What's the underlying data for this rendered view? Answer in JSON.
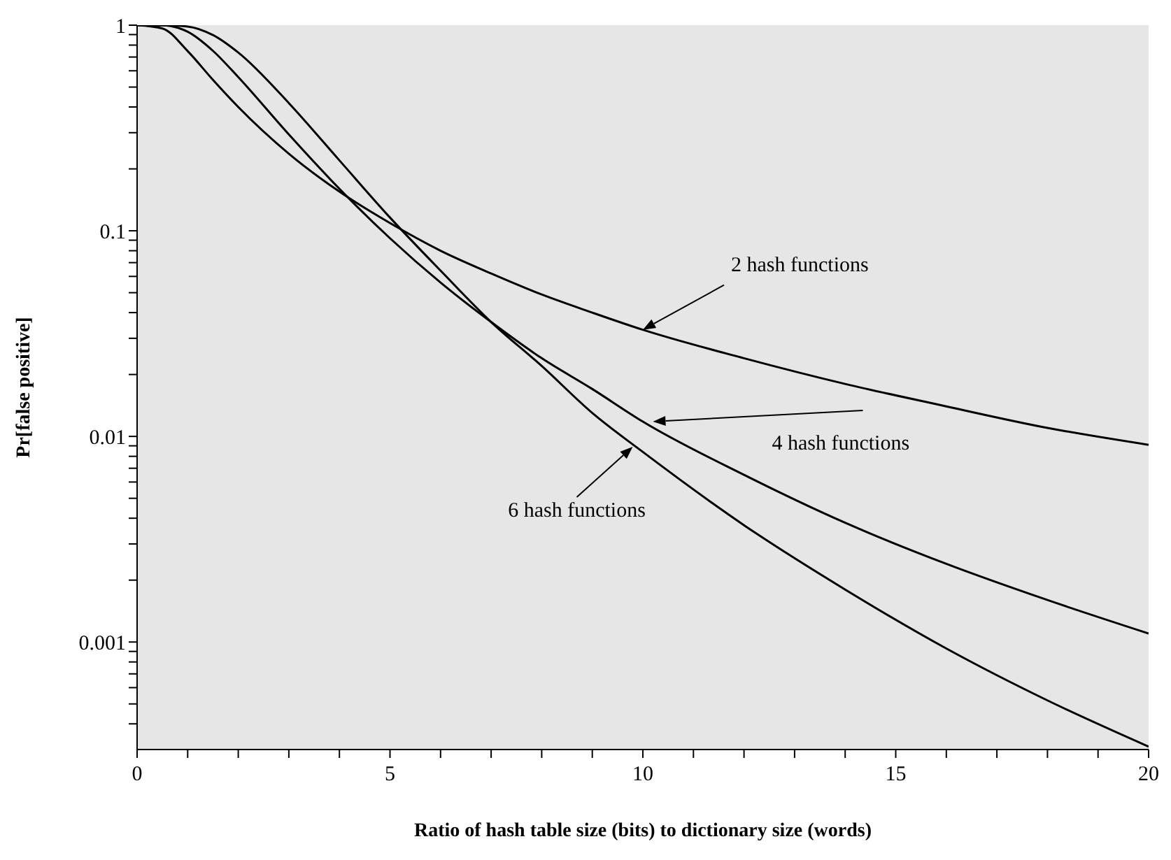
{
  "chart_data": {
    "type": "line",
    "xlabel": "Ratio of hash table size (bits) to dictionary size (words)",
    "ylabel": "Pr[false positive]",
    "x": [
      0,
      0.5,
      1,
      1.5,
      2,
      3,
      4,
      5,
      6,
      7,
      8,
      9,
      10,
      12,
      14,
      16,
      18,
      20
    ],
    "series": [
      {
        "color": "#000000",
        "values": [
          1,
          0.964,
          0.748,
          0.542,
          0.4,
          0.237,
          0.155,
          0.109,
          0.08,
          0.062,
          0.049,
          0.04,
          0.033,
          0.024,
          0.018,
          0.014,
          0.011,
          0.0091
        ]
      },
      {
        "color": "#000000",
        "values": [
          1,
          0.999,
          0.929,
          0.75,
          0.559,
          0.294,
          0.16,
          0.092,
          0.056,
          0.036,
          0.024,
          0.017,
          0.0118,
          0.0065,
          0.0038,
          0.0024,
          0.0016,
          0.0011
        ]
      },
      {
        "color": "#000000",
        "values": [
          1,
          1,
          0.985,
          0.895,
          0.736,
          0.418,
          0.22,
          0.116,
          0.064,
          0.036,
          0.022,
          0.013,
          0.0084,
          0.0037,
          0.0018,
          0.00093,
          0.00052,
          0.00031
        ]
      }
    ],
    "log": "y",
    "xlim": [
      0,
      20
    ],
    "ylim": [
      0.0003,
      1
    ],
    "xticks": [
      0,
      {
        "value": 1,
        "label": null
      },
      {
        "value": 2,
        "label": null
      },
      {
        "value": 3,
        "label": null
      },
      {
        "value": 4,
        "label": null
      },
      5,
      {
        "value": 6,
        "label": null
      },
      {
        "value": 7,
        "label": null
      },
      {
        "value": 8,
        "label": null
      },
      {
        "value": 9,
        "label": null
      },
      10,
      {
        "value": 11,
        "label": null
      },
      {
        "value": 12,
        "label": null
      },
      {
        "value": 13,
        "label": null
      },
      {
        "value": 14,
        "label": null
      },
      15,
      {
        "value": 16,
        "label": null
      },
      {
        "value": 17,
        "label": null
      },
      {
        "value": 18,
        "label": null
      },
      {
        "value": 19,
        "label": null
      },
      20
    ],
    "yticks": [
      {
        "value": 0.0004,
        "label": null
      },
      {
        "value": 0.0005,
        "label": null
      },
      {
        "value": 0.0006,
        "label": null
      },
      {
        "value": 0.0007,
        "label": null
      },
      {
        "value": 0.0008,
        "label": null
      },
      {
        "value": 0.0009,
        "label": null
      },
      0.001,
      {
        "value": 0.002,
        "label": null
      },
      {
        "value": 0.003,
        "label": null
      },
      {
        "value": 0.004,
        "label": null
      },
      {
        "value": 0.005,
        "label": null
      },
      {
        "value": 0.006,
        "label": null
      },
      {
        "value": 0.007,
        "label": null
      },
      {
        "value": 0.008,
        "label": null
      },
      {
        "value": 0.009,
        "label": null
      },
      0.01,
      {
        "value": 0.02,
        "label": null
      },
      {
        "value": 0.03,
        "label": null
      },
      {
        "value": 0.04,
        "label": null
      },
      {
        "value": 0.05,
        "label": null
      },
      {
        "value": 0.06,
        "label": null
      },
      {
        "value": 0.07,
        "label": null
      },
      {
        "value": 0.08,
        "label": null
      },
      {
        "value": 0.09,
        "label": null
      },
      0.1,
      {
        "value": 0.2,
        "label": null
      },
      {
        "value": 0.3,
        "label": null
      },
      {
        "value": 0.4,
        "label": null
      },
      {
        "value": 0.5,
        "label": null
      },
      {
        "value": 0.6,
        "label": null
      },
      {
        "value": 0.7,
        "label": null
      },
      {
        "value": 0.8,
        "label": null
      },
      {
        "value": 0.9,
        "label": null
      },
      1
    ],
    "grid": false,
    "legend": false,
    "marker": "none",
    "line_style": "solid",
    "annotations": [
      {
        "text": "2 hash functions",
        "x": 10,
        "y": 0.033
      },
      {
        "text": "4 hash functions",
        "x": 10.2,
        "y": 0.0118
      },
      {
        "text": "6 hash functions",
        "x": 9.8,
        "y": 0.0089
      }
    ]
  }
}
